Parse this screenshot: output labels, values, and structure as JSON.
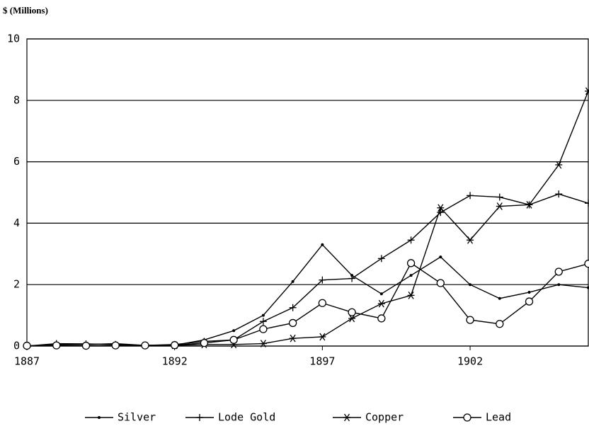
{
  "chart_data": {
    "type": "line",
    "y_label": "$ (Millions)",
    "x": [
      1887,
      1888,
      1889,
      1890,
      1891,
      1892,
      1893,
      1894,
      1895,
      1896,
      1897,
      1898,
      1899,
      1900,
      1901,
      1902,
      1903,
      1904,
      1905,
      1906
    ],
    "xlim": [
      1887,
      1906
    ],
    "xticks": [
      1887,
      1892,
      1897,
      1902
    ],
    "ylim": [
      0,
      10
    ],
    "yticks": [
      0,
      2,
      4,
      6,
      8,
      10
    ],
    "grid": true,
    "legend": "bottom",
    "series": [
      {
        "name": "Silver",
        "color": "#000000",
        "marker": "dot",
        "values": [
          0,
          0.05,
          0.05,
          0.08,
          0.02,
          0.03,
          0.2,
          0.5,
          1.0,
          2.1,
          3.3,
          2.3,
          1.7,
          2.3,
          2.9,
          2.0,
          1.55,
          1.75,
          2.0,
          1.9
        ]
      },
      {
        "name": "Lode Gold",
        "color": "#000000",
        "marker": "plus",
        "values": [
          0,
          0.08,
          0.07,
          0.05,
          0.02,
          0.05,
          0.15,
          0.2,
          0.8,
          1.25,
          2.15,
          2.2,
          2.85,
          3.45,
          4.35,
          4.9,
          4.85,
          4.6,
          4.95,
          4.65
        ]
      },
      {
        "name": "Copper",
        "color": "#000000",
        "marker": "star",
        "values": [
          null,
          null,
          null,
          null,
          null,
          0.02,
          0.05,
          0.05,
          0.08,
          0.25,
          0.3,
          0.9,
          1.38,
          1.65,
          4.5,
          3.45,
          4.55,
          4.6,
          5.9,
          8.3
        ]
      },
      {
        "name": "Lead",
        "color": "#000000",
        "marker": "circle",
        "values": [
          0.01,
          0.02,
          0.01,
          0.02,
          0.02,
          0.03,
          0.1,
          0.2,
          0.55,
          0.75,
          1.4,
          1.1,
          0.9,
          2.7,
          2.05,
          0.85,
          0.72,
          1.45,
          2.42,
          2.68
        ]
      }
    ]
  }
}
